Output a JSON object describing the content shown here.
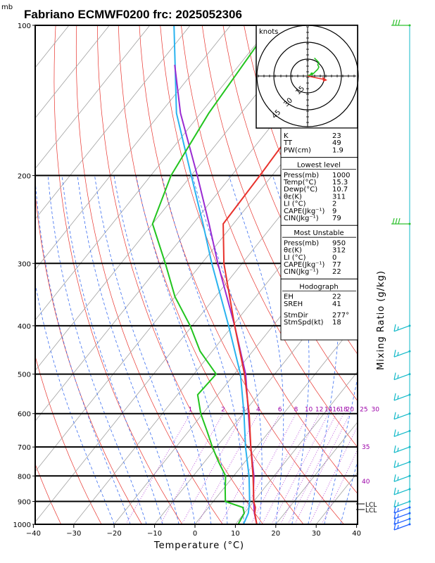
{
  "chart_data": {
    "type": "skew-t log-p sounding",
    "title": "Fabriano ECMWF0200 frc: 2025052306",
    "pressure_unit_label": "mb",
    "xlabel": "Temperature (°C)",
    "x_ticks": [
      "−40",
      "−30",
      "−20",
      "−10",
      "0",
      "10",
      "20",
      "30",
      "40"
    ],
    "xlim": [
      -40,
      40
    ],
    "p_ticks": [
      "100",
      "200",
      "300",
      "400",
      "500",
      "600",
      "700",
      "800",
      "900",
      "1000"
    ],
    "plim": [
      1000,
      100
    ],
    "right_label": "Mixing Ratio (g/kg)",
    "mixing_ratio_labels": [
      "1",
      "2",
      "3",
      "4",
      "6",
      "8",
      "10",
      "12",
      "14",
      "16",
      "18",
      "20",
      "25",
      "30"
    ],
    "mixing_ratio_side_labels": [
      "30",
      "35",
      "40"
    ],
    "lcl_labels": [
      "LCL",
      "LCL"
    ],
    "temperature_profile": {
      "color": "#e8322c",
      "p": [
        1000,
        950,
        925,
        900,
        850,
        800,
        700,
        600,
        500,
        400,
        300,
        250,
        200,
        150,
        100
      ],
      "t": [
        15.3,
        12.6,
        11.6,
        10.0,
        7.5,
        4.8,
        -1.5,
        -8.5,
        -17.5,
        -29.5,
        -44.5,
        -52.5,
        -53.0,
        -54.0,
        -55.5
      ]
    },
    "dewpoint_profile": {
      "color": "#22c41e",
      "p": [
        1000,
        950,
        925,
        900,
        850,
        800,
        750,
        700,
        650,
        600,
        550,
        500,
        450,
        400,
        350,
        300,
        250,
        200,
        150,
        100
      ],
      "td": [
        10.7,
        10.0,
        8.5,
        3.0,
        0.5,
        -2.0,
        -6.5,
        -11.0,
        -15.5,
        -20.5,
        -25.0,
        -24.5,
        -33.0,
        -40.5,
        -50.0,
        -59.0,
        -70.0,
        -75.0,
        -78.0,
        -80.0
      ]
    },
    "parcel_profile": {
      "color": "#9a2bd2",
      "p": [
        1000,
        950,
        900,
        850,
        800,
        700,
        600,
        500,
        400,
        300,
        250,
        200,
        150,
        120
      ],
      "t": [
        15.3,
        12.5,
        10.0,
        7.5,
        5.0,
        -1.5,
        -8.7,
        -17.2,
        -29.5,
        -46.0,
        -56.0,
        -68.5,
        -85.0,
        -96.0
      ]
    },
    "virtual_temp_profile": {
      "color": "#29b3ef",
      "p": [
        1000,
        950,
        900,
        850,
        800,
        700,
        600,
        500,
        400,
        300,
        250,
        200,
        150,
        100
      ],
      "t": [
        12.0,
        11.0,
        9.0,
        6.5,
        3.8,
        -2.8,
        -9.8,
        -18.5,
        -31.0,
        -47.5,
        -57.5,
        -70.0,
        -86.0,
        -104.0
      ]
    },
    "hodograph": {
      "label": "knots",
      "ring_labels": [
        "15",
        "30",
        "45"
      ],
      "ring_values_kt": [
        15,
        30,
        45
      ],
      "trace_u_kt": [
        0,
        2,
        5,
        7,
        8,
        9,
        10,
        9,
        10,
        6
      ],
      "trace_v_kt": [
        0,
        1,
        2,
        4,
        5,
        6,
        8,
        10,
        12,
        16
      ],
      "trace_colors": [
        "#22c41e",
        "#22c41e"
      ],
      "storm_vector_color": "#e8322c"
    },
    "wind_barb_pressures": [
      1000,
      975,
      950,
      925,
      900,
      850,
      800,
      750,
      700,
      650,
      600,
      550,
      500,
      450,
      400,
      250,
      100
    ],
    "wind_barb_colors": {
      "low": "#1a5cff",
      "mid": "#12b9c8",
      "upper": "#2fc02f"
    },
    "indices": {
      "rows": [
        {
          "label": "K",
          "value": "23"
        },
        {
          "label": "TT",
          "value": "49"
        },
        {
          "label": "PW(cm)",
          "value": "1.9"
        }
      ],
      "lowest_level": {
        "heading": "Lowest level",
        "rows": [
          {
            "label": "Press(mb)",
            "value": "1000"
          },
          {
            "label": "Temp(°C)",
            "value": "15.3"
          },
          {
            "label": "Dewp(°C)",
            "value": "10.7"
          },
          {
            "label": "θε(K)",
            "value": "311"
          },
          {
            "label": "LI (°C)",
            "value": "2"
          },
          {
            "label": "CAPE(Jkg⁻¹)",
            "value": "9"
          },
          {
            "label": "CIN(Jkg⁻¹)",
            "value": "79"
          }
        ]
      },
      "most_unstable": {
        "heading": "Most Unstable",
        "rows": [
          {
            "label": "Press(mb)",
            "value": "950"
          },
          {
            "label": "θε(K)",
            "value": "312"
          },
          {
            "label": "LI (°C)",
            "value": "0"
          },
          {
            "label": "CAPE(Jkg⁻¹)",
            "value": "77"
          },
          {
            "label": "CIN(Jkg⁻¹)",
            "value": "22"
          }
        ]
      },
      "hodograph_section": {
        "heading": "Hodograph",
        "rows": [
          {
            "label": "EH",
            "value": "22"
          },
          {
            "label": "SREH",
            "value": "41"
          },
          {
            "label": "StmDir",
            "value": "277°"
          },
          {
            "label": "StmSpd(kt)",
            "value": "18"
          }
        ]
      }
    }
  }
}
